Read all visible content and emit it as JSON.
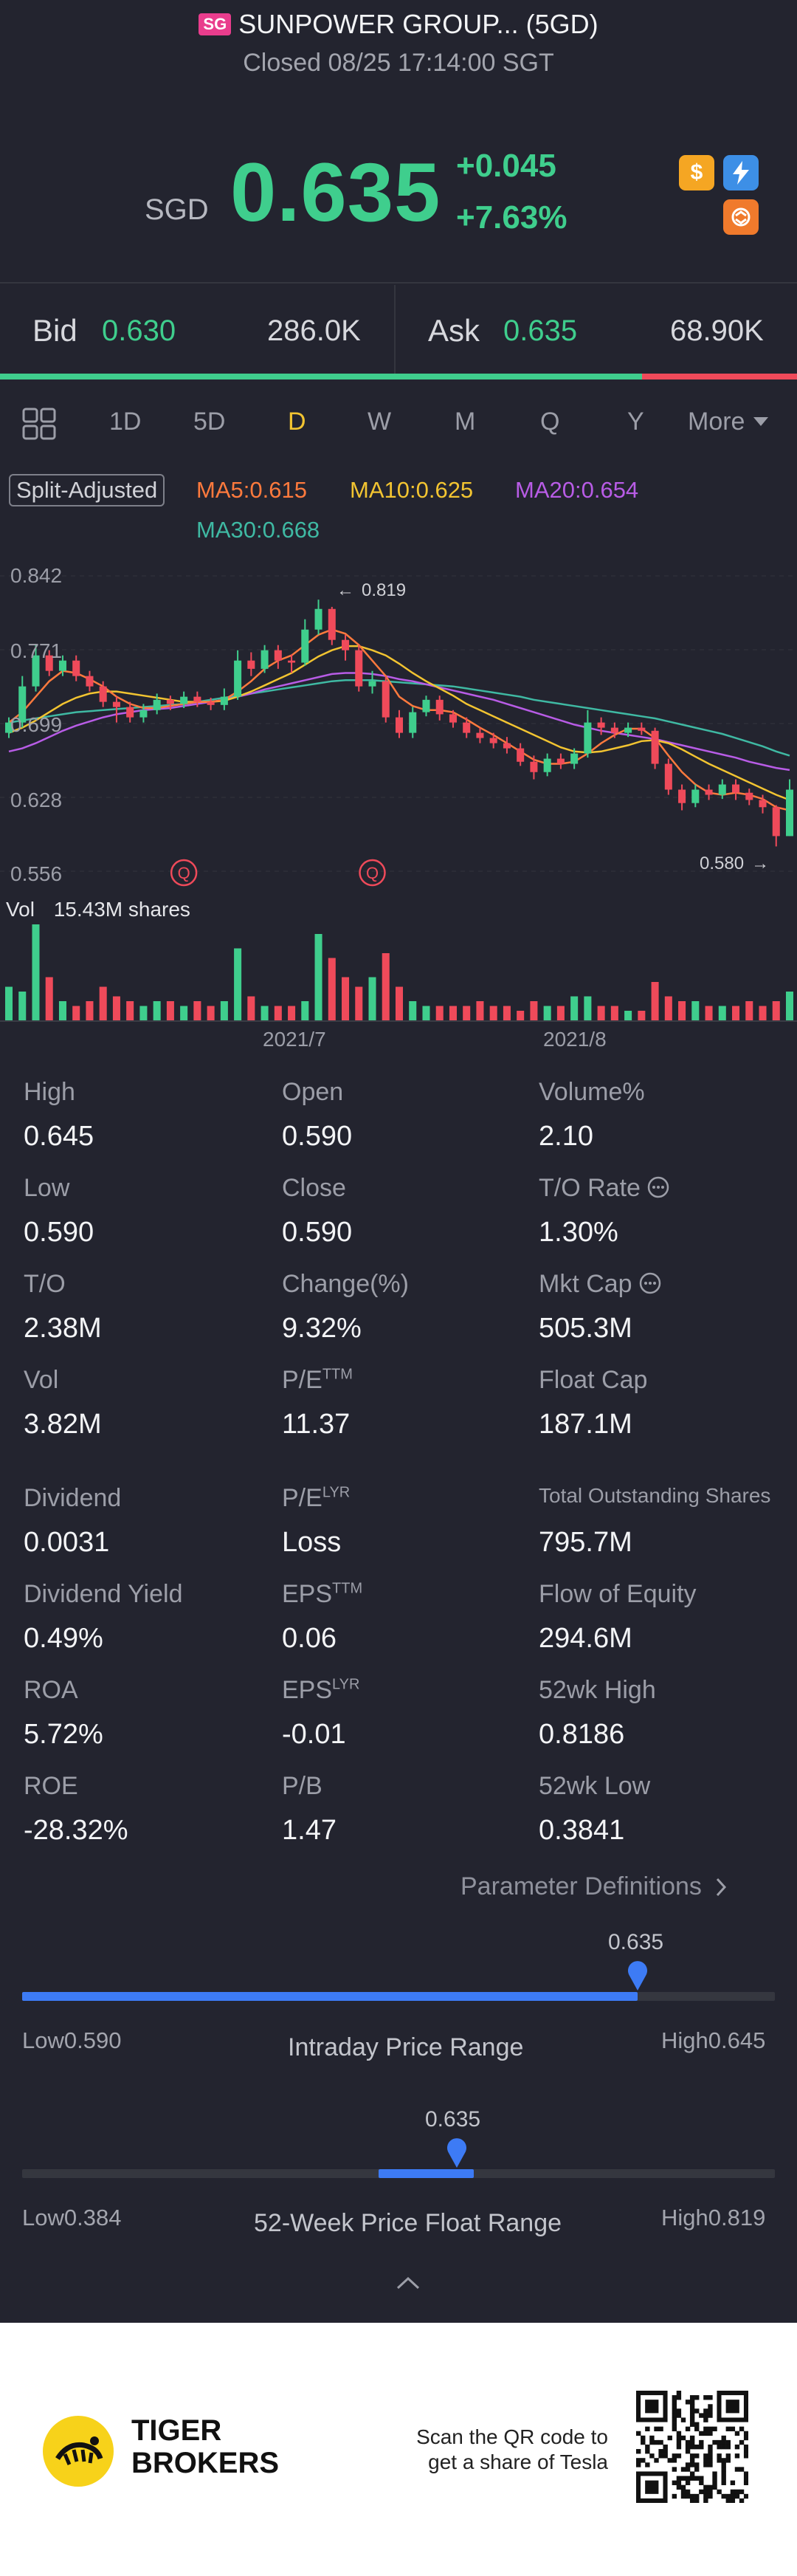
{
  "header": {
    "market_badge": "SG",
    "title": "SUNPOWER GROUP... (5GD)",
    "status": "Closed 08/25 17:14:00 SGT"
  },
  "quote": {
    "currency": "SGD",
    "price": "0.635",
    "change": "+0.045",
    "change_pct": "+7.63%",
    "icons": [
      "dollar-icon",
      "lightning-icon",
      "swap-icon"
    ]
  },
  "bidask": {
    "bid_label": "Bid",
    "bid_price": "0.630",
    "bid_volume": "286.0K",
    "ask_label": "Ask",
    "ask_price": "0.635",
    "ask_volume": "68.90K",
    "bid_ratio": 0.806
  },
  "tabs": {
    "items": [
      "1D",
      "5D",
      "D",
      "W",
      "M",
      "Q",
      "Y"
    ],
    "more": "More",
    "active": "D"
  },
  "ma": {
    "split_adjusted": "Split-Adjusted",
    "ma5": "MA5:0.615",
    "ma10": "MA10:0.625",
    "ma20": "MA20:0.654",
    "ma30": "MA30:0.668",
    "colors": {
      "ma5": "#ff7a3d",
      "ma10": "#f2c431",
      "ma20": "#b85ce6",
      "ma30": "#3fb9a3"
    }
  },
  "chart": {
    "y_labels": [
      "0.842",
      "0.771",
      "0.699",
      "0.628",
      "0.556"
    ],
    "high_marker": "0.819",
    "low_marker": "0.580",
    "event_marker": "Q",
    "vol_label": "Vol",
    "vol_value": "15.43M shares",
    "x_labels": [
      "2021/7",
      "2021/8"
    ]
  },
  "chart_data": {
    "type": "candlestick",
    "ylim": [
      0.556,
      0.842
    ],
    "candles": [
      {
        "o": 0.69,
        "c": 0.7,
        "h": 0.705,
        "l": 0.685
      },
      {
        "o": 0.7,
        "c": 0.735,
        "h": 0.745,
        "l": 0.695
      },
      {
        "o": 0.735,
        "c": 0.765,
        "h": 0.775,
        "l": 0.73
      },
      {
        "o": 0.765,
        "c": 0.75,
        "h": 0.77,
        "l": 0.745
      },
      {
        "o": 0.75,
        "c": 0.76,
        "h": 0.765,
        "l": 0.745
      },
      {
        "o": 0.76,
        "c": 0.745,
        "h": 0.765,
        "l": 0.74
      },
      {
        "o": 0.745,
        "c": 0.735,
        "h": 0.75,
        "l": 0.73
      },
      {
        "o": 0.735,
        "c": 0.72,
        "h": 0.74,
        "l": 0.715
      },
      {
        "o": 0.72,
        "c": 0.715,
        "h": 0.725,
        "l": 0.7
      },
      {
        "o": 0.715,
        "c": 0.705,
        "h": 0.72,
        "l": 0.7
      },
      {
        "o": 0.705,
        "c": 0.712,
        "h": 0.718,
        "l": 0.7
      },
      {
        "o": 0.712,
        "c": 0.722,
        "h": 0.728,
        "l": 0.708
      },
      {
        "o": 0.722,
        "c": 0.718,
        "h": 0.726,
        "l": 0.712
      },
      {
        "o": 0.718,
        "c": 0.725,
        "h": 0.73,
        "l": 0.714
      },
      {
        "o": 0.725,
        "c": 0.72,
        "h": 0.73,
        "l": 0.715
      },
      {
        "o": 0.72,
        "c": 0.717,
        "h": 0.724,
        "l": 0.712
      },
      {
        "o": 0.717,
        "c": 0.725,
        "h": 0.733,
        "l": 0.712
      },
      {
        "o": 0.725,
        "c": 0.76,
        "h": 0.77,
        "l": 0.722
      },
      {
        "o": 0.76,
        "c": 0.752,
        "h": 0.768,
        "l": 0.745
      },
      {
        "o": 0.752,
        "c": 0.77,
        "h": 0.775,
        "l": 0.748
      },
      {
        "o": 0.77,
        "c": 0.76,
        "h": 0.775,
        "l": 0.752
      },
      {
        "o": 0.76,
        "c": 0.758,
        "h": 0.766,
        "l": 0.748
      },
      {
        "o": 0.758,
        "c": 0.79,
        "h": 0.8,
        "l": 0.755
      },
      {
        "o": 0.79,
        "c": 0.81,
        "h": 0.819,
        "l": 0.785
      },
      {
        "o": 0.81,
        "c": 0.78,
        "h": 0.812,
        "l": 0.775
      },
      {
        "o": 0.78,
        "c": 0.77,
        "h": 0.785,
        "l": 0.76
      },
      {
        "o": 0.77,
        "c": 0.735,
        "h": 0.775,
        "l": 0.73
      },
      {
        "o": 0.735,
        "c": 0.74,
        "h": 0.75,
        "l": 0.728
      },
      {
        "o": 0.74,
        "c": 0.705,
        "h": 0.745,
        "l": 0.7
      },
      {
        "o": 0.705,
        "c": 0.69,
        "h": 0.712,
        "l": 0.685
      },
      {
        "o": 0.69,
        "c": 0.71,
        "h": 0.715,
        "l": 0.685
      },
      {
        "o": 0.71,
        "c": 0.722,
        "h": 0.726,
        "l": 0.706
      },
      {
        "o": 0.722,
        "c": 0.708,
        "h": 0.726,
        "l": 0.702
      },
      {
        "o": 0.708,
        "c": 0.7,
        "h": 0.712,
        "l": 0.695
      },
      {
        "o": 0.7,
        "c": 0.69,
        "h": 0.705,
        "l": 0.685
      },
      {
        "o": 0.69,
        "c": 0.685,
        "h": 0.695,
        "l": 0.68
      },
      {
        "o": 0.685,
        "c": 0.68,
        "h": 0.69,
        "l": 0.675
      },
      {
        "o": 0.68,
        "c": 0.675,
        "h": 0.686,
        "l": 0.67
      },
      {
        "o": 0.675,
        "c": 0.662,
        "h": 0.68,
        "l": 0.658
      },
      {
        "o": 0.662,
        "c": 0.652,
        "h": 0.668,
        "l": 0.645
      },
      {
        "o": 0.652,
        "c": 0.665,
        "h": 0.67,
        "l": 0.648
      },
      {
        "o": 0.665,
        "c": 0.66,
        "h": 0.67,
        "l": 0.655
      },
      {
        "o": 0.66,
        "c": 0.67,
        "h": 0.675,
        "l": 0.655
      },
      {
        "o": 0.67,
        "c": 0.7,
        "h": 0.712,
        "l": 0.666
      },
      {
        "o": 0.7,
        "c": 0.695,
        "h": 0.705,
        "l": 0.688
      },
      {
        "o": 0.695,
        "c": 0.69,
        "h": 0.7,
        "l": 0.685
      },
      {
        "o": 0.69,
        "c": 0.695,
        "h": 0.7,
        "l": 0.686
      },
      {
        "o": 0.695,
        "c": 0.692,
        "h": 0.7,
        "l": 0.688
      },
      {
        "o": 0.692,
        "c": 0.66,
        "h": 0.695,
        "l": 0.655
      },
      {
        "o": 0.66,
        "c": 0.635,
        "h": 0.665,
        "l": 0.63
      },
      {
        "o": 0.635,
        "c": 0.622,
        "h": 0.64,
        "l": 0.615
      },
      {
        "o": 0.622,
        "c": 0.635,
        "h": 0.64,
        "l": 0.618
      },
      {
        "o": 0.635,
        "c": 0.63,
        "h": 0.64,
        "l": 0.625
      },
      {
        "o": 0.63,
        "c": 0.64,
        "h": 0.645,
        "l": 0.626
      },
      {
        "o": 0.64,
        "c": 0.632,
        "h": 0.645,
        "l": 0.625
      },
      {
        "o": 0.632,
        "c": 0.625,
        "h": 0.636,
        "l": 0.62
      },
      {
        "o": 0.625,
        "c": 0.618,
        "h": 0.63,
        "l": 0.612
      },
      {
        "o": 0.618,
        "c": 0.59,
        "h": 0.62,
        "l": 0.58
      },
      {
        "o": 0.59,
        "c": 0.635,
        "h": 0.645,
        "l": 0.59
      }
    ],
    "ma5": [
      0.7,
      0.71,
      0.725,
      0.74,
      0.75,
      0.748,
      0.742,
      0.735,
      0.725,
      0.718,
      0.714,
      0.714,
      0.716,
      0.718,
      0.72,
      0.72,
      0.722,
      0.73,
      0.74,
      0.752,
      0.76,
      0.765,
      0.775,
      0.785,
      0.79,
      0.786,
      0.775,
      0.76,
      0.745,
      0.725,
      0.716,
      0.712,
      0.712,
      0.71,
      0.703,
      0.695,
      0.688,
      0.68,
      0.672,
      0.664,
      0.66,
      0.66,
      0.662,
      0.67,
      0.68,
      0.688,
      0.694,
      0.694,
      0.685,
      0.668,
      0.652,
      0.64,
      0.632,
      0.63,
      0.632,
      0.63,
      0.626,
      0.618,
      0.615
    ],
    "ma10": [
      0.69,
      0.695,
      0.702,
      0.71,
      0.718,
      0.724,
      0.728,
      0.73,
      0.73,
      0.728,
      0.726,
      0.724,
      0.722,
      0.72,
      0.72,
      0.72,
      0.721,
      0.725,
      0.73,
      0.736,
      0.742,
      0.748,
      0.756,
      0.764,
      0.77,
      0.774,
      0.774,
      0.77,
      0.765,
      0.757,
      0.748,
      0.74,
      0.733,
      0.726,
      0.718,
      0.712,
      0.706,
      0.7,
      0.694,
      0.688,
      0.682,
      0.676,
      0.672,
      0.671,
      0.672,
      0.675,
      0.678,
      0.682,
      0.683,
      0.68,
      0.674,
      0.667,
      0.66,
      0.654,
      0.648,
      0.642,
      0.636,
      0.63,
      0.625
    ],
    "ma20": [
      0.672,
      0.675,
      0.68,
      0.686,
      0.692,
      0.697,
      0.701,
      0.705,
      0.708,
      0.71,
      0.712,
      0.713,
      0.714,
      0.716,
      0.718,
      0.72,
      0.722,
      0.725,
      0.728,
      0.732,
      0.735,
      0.738,
      0.741,
      0.744,
      0.747,
      0.748,
      0.748,
      0.747,
      0.745,
      0.742,
      0.74,
      0.737,
      0.734,
      0.731,
      0.728,
      0.725,
      0.722,
      0.718,
      0.714,
      0.71,
      0.706,
      0.702,
      0.698,
      0.695,
      0.692,
      0.69,
      0.688,
      0.686,
      0.684,
      0.681,
      0.678,
      0.675,
      0.672,
      0.669,
      0.666,
      0.662,
      0.659,
      0.656,
      0.654
    ],
    "ma30": [
      0.7,
      0.702,
      0.704,
      0.706,
      0.708,
      0.71,
      0.711,
      0.712,
      0.713,
      0.714,
      0.715,
      0.716,
      0.717,
      0.718,
      0.72,
      0.722,
      0.724,
      0.726,
      0.728,
      0.73,
      0.732,
      0.734,
      0.736,
      0.738,
      0.74,
      0.741,
      0.741,
      0.741,
      0.74,
      0.739,
      0.738,
      0.737,
      0.736,
      0.735,
      0.733,
      0.731,
      0.729,
      0.727,
      0.725,
      0.722,
      0.72,
      0.718,
      0.716,
      0.714,
      0.712,
      0.71,
      0.708,
      0.706,
      0.704,
      0.701,
      0.698,
      0.695,
      0.692,
      0.689,
      0.685,
      0.681,
      0.677,
      0.672,
      0.668
    ],
    "volumes": [
      0.35,
      0.3,
      1.0,
      0.45,
      0.2,
      0.15,
      0.2,
      0.35,
      0.25,
      0.2,
      0.15,
      0.2,
      0.2,
      0.15,
      0.2,
      0.15,
      0.2,
      0.75,
      0.25,
      0.15,
      0.15,
      0.15,
      0.2,
      0.9,
      0.65,
      0.45,
      0.35,
      0.45,
      0.7,
      0.35,
      0.2,
      0.15,
      0.15,
      0.15,
      0.15,
      0.2,
      0.15,
      0.15,
      0.1,
      0.2,
      0.15,
      0.15,
      0.25,
      0.25,
      0.15,
      0.15,
      0.1,
      0.1,
      0.4,
      0.25,
      0.2,
      0.2,
      0.15,
      0.15,
      0.15,
      0.2,
      0.15,
      0.2,
      0.3
    ],
    "event_markers_at_index": [
      13,
      27
    ]
  },
  "stats": {
    "col1": [
      {
        "label": "High",
        "value": "0.645"
      },
      {
        "label": "Low",
        "value": "0.590"
      },
      {
        "label": "T/O",
        "value": "2.38M"
      },
      {
        "label": "Vol",
        "value": "3.82M"
      },
      {
        "label": "Dividend",
        "value": "0.0031"
      },
      {
        "label": "Dividend Yield",
        "value": "0.49%"
      },
      {
        "label": "ROA",
        "value": "5.72%"
      },
      {
        "label": "ROE",
        "value": "-28.32%"
      }
    ],
    "col2": [
      {
        "label": "Open",
        "value": "0.590"
      },
      {
        "label": "Close",
        "value": "0.590"
      },
      {
        "label": "Change(%)",
        "value": "9.32%"
      },
      {
        "label": "P/E",
        "sup": "TTM",
        "value": "11.37"
      },
      {
        "label": "P/E",
        "sup": "LYR",
        "value": "Loss"
      },
      {
        "label": "EPS",
        "sup": "TTM",
        "value": "0.06"
      },
      {
        "label": "EPS",
        "sup": "LYR",
        "value": "-0.01"
      },
      {
        "label": "P/B",
        "value": "1.47"
      }
    ],
    "col3": [
      {
        "label": "Volume%",
        "value": "2.10"
      },
      {
        "label": "T/O Rate",
        "info": true,
        "value": "1.30%"
      },
      {
        "label": "Mkt Cap",
        "info": true,
        "value": "505.3M"
      },
      {
        "label": "Float Cap",
        "value": "187.1M"
      },
      {
        "label": "Total Outstanding Shares",
        "value": "795.7M"
      },
      {
        "label": "Flow of Equity",
        "value": "294.6M"
      },
      {
        "label": "52wk High",
        "value": "0.8186"
      },
      {
        "label": "52wk Low",
        "value": "0.3841"
      }
    ],
    "param_defs": "Parameter Definitions"
  },
  "intraday": {
    "current": "0.635",
    "low_label": "Low",
    "low": "0.590",
    "high_label": "High",
    "high": "0.645",
    "title": "Intraday Price Range",
    "fill_pct": 0.818
  },
  "week52": {
    "current": "0.635",
    "low_label": "Low",
    "low": "0.384",
    "high_label": "High",
    "high": "0.819",
    "title": "52-Week Price Float Range",
    "position_pct": 0.577
  },
  "footer": {
    "brand_line1": "TIGER",
    "brand_line2": "BROKERS",
    "promo_line1": "Scan the QR code to",
    "promo_line2": "get a share of Tesla"
  }
}
